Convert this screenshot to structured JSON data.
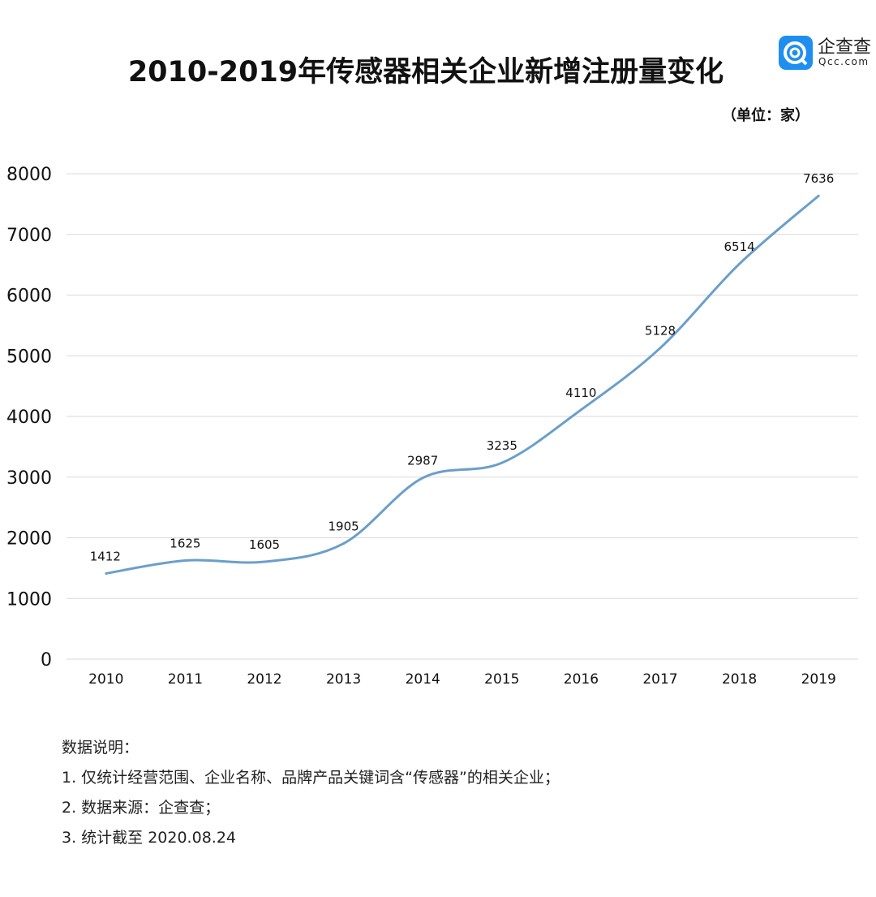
{
  "chart_data": {
    "type": "line",
    "title": "2010-2019年传感器相关企业新增注册量变化",
    "unit_label": "（单位：家）",
    "categories": [
      "2010",
      "2011",
      "2012",
      "2013",
      "2014",
      "2015",
      "2016",
      "2017",
      "2018",
      "2019"
    ],
    "values": [
      1412,
      1625,
      1605,
      1905,
      2987,
      3235,
      4110,
      5128,
      6514,
      7636
    ],
    "ylim": [
      0,
      8000
    ],
    "yticks": [
      "0",
      "1000",
      "2000",
      "3000",
      "4000",
      "5000",
      "6000",
      "7000",
      "8000"
    ],
    "grid": true,
    "smooth": true,
    "line_color": "#6a9fcb",
    "xlabel": "",
    "ylabel": ""
  },
  "logo": {
    "name": "企查查",
    "url": "Qcc.com",
    "color": "#1f8ef1"
  },
  "notes": {
    "heading": "数据说明：",
    "items": [
      "1. 仅统计经营范围、企业名称、品牌产品关键词含“传感器”的相关企业；",
      "2. 数据来源：企查查；",
      "3. 统计截至 2020.08.24"
    ]
  }
}
